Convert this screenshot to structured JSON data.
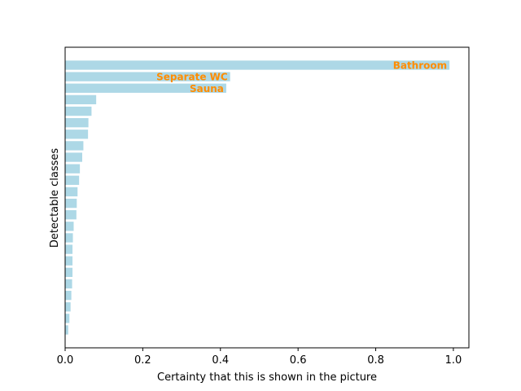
{
  "chart_data": {
    "type": "bar",
    "orientation": "horizontal",
    "xlabel": "Certainty that this is shown in the picture",
    "ylabel": "Detectable classes",
    "xlim": [
      0,
      1.04
    ],
    "xticks": [
      0.0,
      0.2,
      0.4,
      0.6,
      0.8,
      1.0
    ],
    "xtick_labels": [
      "0.0",
      "0.2",
      "0.4",
      "0.6",
      "0.8",
      "1.0"
    ],
    "grid": false,
    "legend": "none",
    "bar_color": "#add8e6",
    "label_color": "#ff8c00",
    "bars": [
      {
        "label": "Bathroom",
        "value": 0.99
      },
      {
        "label": "Separate WC",
        "value": 0.425
      },
      {
        "label": "Sauna",
        "value": 0.415
      },
      {
        "label": "",
        "value": 0.08
      },
      {
        "label": "",
        "value": 0.068
      },
      {
        "label": "",
        "value": 0.06
      },
      {
        "label": "",
        "value": 0.059
      },
      {
        "label": "",
        "value": 0.047
      },
      {
        "label": "",
        "value": 0.044
      },
      {
        "label": "",
        "value": 0.038
      },
      {
        "label": "",
        "value": 0.036
      },
      {
        "label": "",
        "value": 0.032
      },
      {
        "label": "",
        "value": 0.03
      },
      {
        "label": "",
        "value": 0.029
      },
      {
        "label": "",
        "value": 0.022
      },
      {
        "label": "",
        "value": 0.02
      },
      {
        "label": "",
        "value": 0.019
      },
      {
        "label": "",
        "value": 0.019
      },
      {
        "label": "",
        "value": 0.019
      },
      {
        "label": "",
        "value": 0.018
      },
      {
        "label": "",
        "value": 0.016
      },
      {
        "label": "",
        "value": 0.014
      },
      {
        "label": "",
        "value": 0.011
      },
      {
        "label": "",
        "value": 0.008
      }
    ]
  }
}
